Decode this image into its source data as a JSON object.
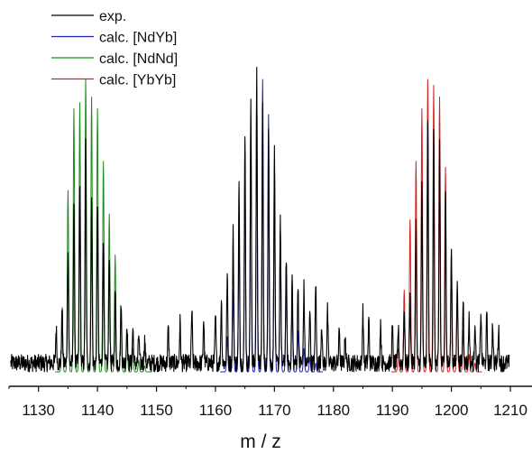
{
  "chart_data": {
    "type": "line",
    "title": "",
    "xlabel": "m / z",
    "ylabel": "",
    "xlim": [
      1125,
      1210
    ],
    "ylim": [
      0,
      100
    ],
    "x_ticks": [
      1130,
      1140,
      1150,
      1160,
      1170,
      1180,
      1190,
      1200,
      1210
    ],
    "x_tick_labels": [
      "1130",
      "1140",
      "1150",
      "1160",
      "1170",
      "1180",
      "1190",
      "1200",
      "1210"
    ],
    "y_axis_visible": false,
    "grid": false,
    "legend_position": "top-left",
    "noise_floor": 6,
    "series": [
      {
        "name": "exp.",
        "color": "#000000",
        "peaks": [
          [
            1133,
            12
          ],
          [
            1134,
            18
          ],
          [
            1135,
            40
          ],
          [
            1136,
            55
          ],
          [
            1137,
            60
          ],
          [
            1138,
            75
          ],
          [
            1139,
            58
          ],
          [
            1140,
            55
          ],
          [
            1141,
            42
          ],
          [
            1142,
            38
          ],
          [
            1143,
            25
          ],
          [
            1144,
            20
          ],
          [
            1145,
            14
          ],
          [
            1146,
            12
          ],
          [
            1147,
            10
          ],
          [
            1148,
            8
          ],
          [
            1152,
            12
          ],
          [
            1154,
            14
          ],
          [
            1156,
            18
          ],
          [
            1158,
            15
          ],
          [
            1160,
            16
          ],
          [
            1161,
            22
          ],
          [
            1162,
            30
          ],
          [
            1163,
            45
          ],
          [
            1164,
            62
          ],
          [
            1165,
            80
          ],
          [
            1166,
            90
          ],
          [
            1167,
            99
          ],
          [
            1168,
            88
          ],
          [
            1169,
            82
          ],
          [
            1170,
            72
          ],
          [
            1171,
            48
          ],
          [
            1172,
            36
          ],
          [
            1173,
            30
          ],
          [
            1174,
            28
          ],
          [
            1175,
            26
          ],
          [
            1176,
            20
          ],
          [
            1177,
            28
          ],
          [
            1178,
            14
          ],
          [
            1179,
            18
          ],
          [
            1181,
            12
          ],
          [
            1182,
            10
          ],
          [
            1185,
            18
          ],
          [
            1186,
            15
          ],
          [
            1188,
            14
          ],
          [
            1190,
            12
          ],
          [
            1191,
            12
          ],
          [
            1192,
            18
          ],
          [
            1193,
            22
          ],
          [
            1194,
            48
          ],
          [
            1195,
            62
          ],
          [
            1196,
            82
          ],
          [
            1197,
            78
          ],
          [
            1198,
            76
          ],
          [
            1199,
            60
          ],
          [
            1200,
            38
          ],
          [
            1201,
            30
          ],
          [
            1202,
            22
          ],
          [
            1203,
            16
          ],
          [
            1204,
            15
          ],
          [
            1205,
            18
          ],
          [
            1206,
            16
          ],
          [
            1207,
            14
          ],
          [
            1208,
            12
          ]
        ]
      },
      {
        "name": "calc. [NdYb]",
        "color": "#1f24b4",
        "peaks": [
          [
            1162,
            12
          ],
          [
            1163,
            28
          ],
          [
            1164,
            45
          ],
          [
            1165,
            68
          ],
          [
            1166,
            86
          ],
          [
            1167,
            96
          ],
          [
            1168,
            100
          ],
          [
            1169,
            88
          ],
          [
            1170,
            72
          ],
          [
            1171,
            50
          ],
          [
            1172,
            34
          ],
          [
            1173,
            22
          ],
          [
            1174,
            14
          ],
          [
            1175,
            8
          ],
          [
            1176,
            5
          ],
          [
            1177,
            3
          ]
        ]
      },
      {
        "name": "calc. [NdNd]",
        "color": "#1c8a1c",
        "peaks": [
          [
            1134,
            22
          ],
          [
            1135,
            62
          ],
          [
            1136,
            90
          ],
          [
            1137,
            92
          ],
          [
            1138,
            100
          ],
          [
            1139,
            94
          ],
          [
            1140,
            90
          ],
          [
            1141,
            72
          ],
          [
            1142,
            54
          ],
          [
            1143,
            40
          ],
          [
            1144,
            22
          ],
          [
            1145,
            12
          ],
          [
            1146,
            8
          ],
          [
            1147,
            4
          ],
          [
            1148,
            2
          ]
        ]
      },
      {
        "name": "calc. [YbYb]",
        "color": "#d42020",
        "peaks": [
          [
            1191,
            8
          ],
          [
            1192,
            28
          ],
          [
            1193,
            52
          ],
          [
            1194,
            72
          ],
          [
            1195,
            90
          ],
          [
            1196,
            100
          ],
          [
            1197,
            98
          ],
          [
            1198,
            94
          ],
          [
            1199,
            70
          ],
          [
            1200,
            42
          ],
          [
            1201,
            24
          ],
          [
            1202,
            14
          ],
          [
            1203,
            6
          ],
          [
            1204,
            3
          ]
        ]
      }
    ]
  }
}
